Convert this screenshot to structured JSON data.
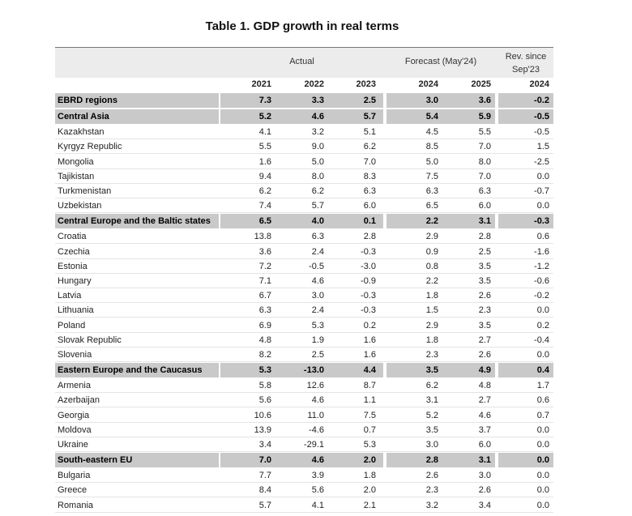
{
  "title": "Table 1. GDP growth in real terms",
  "header": {
    "actual": "Actual",
    "forecast": "Forecast (May'24)",
    "revision": "Rev. since Sep'23",
    "years": [
      "2021",
      "2022",
      "2023",
      "2024",
      "2025",
      "2024"
    ]
  },
  "table": {
    "rows": [
      {
        "label": "EBRD regions",
        "values": [
          "7.3",
          "3.3",
          "2.5",
          "3.0",
          "3.6",
          "-0.2"
        ],
        "region": true
      },
      {
        "label": "Central Asia",
        "values": [
          "5.2",
          "4.6",
          "5.7",
          "5.4",
          "5.9",
          "-0.5"
        ],
        "region": true
      },
      {
        "label": "Kazakhstan",
        "values": [
          "4.1",
          "3.2",
          "5.1",
          "4.5",
          "5.5",
          "-0.5"
        ]
      },
      {
        "label": "Kyrgyz Republic",
        "values": [
          "5.5",
          "9.0",
          "6.2",
          "8.5",
          "7.0",
          "1.5"
        ]
      },
      {
        "label": "Mongolia",
        "values": [
          "1.6",
          "5.0",
          "7.0",
          "5.0",
          "8.0",
          "-2.5"
        ]
      },
      {
        "label": "Tajikistan",
        "values": [
          "9.4",
          "8.0",
          "8.3",
          "7.5",
          "7.0",
          "0.0"
        ]
      },
      {
        "label": "Turkmenistan",
        "values": [
          "6.2",
          "6.2",
          "6.3",
          "6.3",
          "6.3",
          "-0.7"
        ]
      },
      {
        "label": "Uzbekistan",
        "values": [
          "7.4",
          "5.7",
          "6.0",
          "6.5",
          "6.0",
          "0.0"
        ]
      },
      {
        "label": "Central Europe and the Baltic states",
        "values": [
          "6.5",
          "4.0",
          "0.1",
          "2.2",
          "3.1",
          "-0.3"
        ],
        "region": true
      },
      {
        "label": "Croatia",
        "values": [
          "13.8",
          "6.3",
          "2.8",
          "2.9",
          "2.8",
          "0.6"
        ]
      },
      {
        "label": "Czechia",
        "values": [
          "3.6",
          "2.4",
          "-0.3",
          "0.9",
          "2.5",
          "-1.6"
        ]
      },
      {
        "label": "Estonia",
        "values": [
          "7.2",
          "-0.5",
          "-3.0",
          "0.8",
          "3.5",
          "-1.2"
        ]
      },
      {
        "label": "Hungary",
        "values": [
          "7.1",
          "4.6",
          "-0.9",
          "2.2",
          "3.5",
          "-0.6"
        ]
      },
      {
        "label": "Latvia",
        "values": [
          "6.7",
          "3.0",
          "-0.3",
          "1.8",
          "2.6",
          "-0.2"
        ]
      },
      {
        "label": "Lithuania",
        "values": [
          "6.3",
          "2.4",
          "-0.3",
          "1.5",
          "2.3",
          "0.0"
        ]
      },
      {
        "label": "Poland",
        "values": [
          "6.9",
          "5.3",
          "0.2",
          "2.9",
          "3.5",
          "0.2"
        ]
      },
      {
        "label": "Slovak Republic",
        "values": [
          "4.8",
          "1.9",
          "1.6",
          "1.8",
          "2.7",
          "-0.4"
        ]
      },
      {
        "label": "Slovenia",
        "values": [
          "8.2",
          "2.5",
          "1.6",
          "2.3",
          "2.6",
          "0.0"
        ]
      },
      {
        "label": "Eastern Europe and the Caucasus",
        "values": [
          "5.3",
          "-13.0",
          "4.4",
          "3.5",
          "4.9",
          "0.4"
        ],
        "region": true
      },
      {
        "label": "Armenia",
        "values": [
          "5.8",
          "12.6",
          "8.7",
          "6.2",
          "4.8",
          "1.7"
        ]
      },
      {
        "label": "Azerbaijan",
        "values": [
          "5.6",
          "4.6",
          "1.1",
          "3.1",
          "2.7",
          "0.6"
        ]
      },
      {
        "label": "Georgia",
        "values": [
          "10.6",
          "11.0",
          "7.5",
          "5.2",
          "4.6",
          "0.7"
        ]
      },
      {
        "label": "Moldova",
        "values": [
          "13.9",
          "-4.6",
          "0.7",
          "3.5",
          "3.7",
          "0.0"
        ]
      },
      {
        "label": "Ukraine",
        "values": [
          "3.4",
          "-29.1",
          "5.3",
          "3.0",
          "6.0",
          "0.0"
        ]
      },
      {
        "label": "South-eastern EU",
        "values": [
          "7.0",
          "4.6",
          "2.0",
          "2.8",
          "3.1",
          "0.0"
        ],
        "region": true
      },
      {
        "label": "Bulgaria",
        "values": [
          "7.7",
          "3.9",
          "1.8",
          "2.6",
          "3.0",
          "0.0"
        ]
      },
      {
        "label": "Greece",
        "values": [
          "8.4",
          "5.6",
          "2.0",
          "2.3",
          "2.6",
          "0.0"
        ]
      },
      {
        "label": "Romania",
        "values": [
          "5.7",
          "4.1",
          "2.1",
          "3.2",
          "3.4",
          "0.0"
        ]
      }
    ]
  }
}
